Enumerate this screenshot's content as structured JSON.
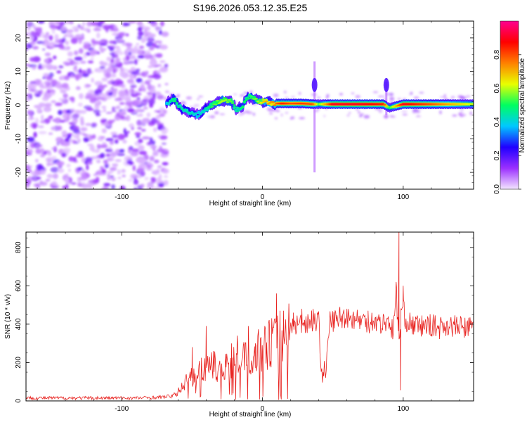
{
  "title": "S196.2026.053.12.35.E25",
  "chart_data": [
    {
      "type": "heatmap",
      "xlabel": "Height of straight line (km)",
      "ylabel": "Frequency (Hz)",
      "xlim": [
        -168,
        150
      ],
      "ylim": [
        -25,
        25
      ],
      "xticks": [
        -100,
        0,
        100
      ],
      "yticks": [
        -20,
        -10,
        0,
        10,
        20
      ],
      "colorbar": {
        "label": "Normalized spectral amplitude",
        "range": [
          0,
          1
        ],
        "ticks": [
          0.0,
          0.2,
          0.4,
          0.6,
          0.8
        ],
        "colors": [
          "#f4e6ff",
          "#9b30ff",
          "#2000ff",
          "#00c8ff",
          "#00ff60",
          "#e8ff00",
          "#ff8000",
          "#ff0000",
          "#ff0090"
        ]
      },
      "noise_region_x": [
        -168,
        -68
      ],
      "signal_path": {
        "x": [
          -68,
          -63,
          -58,
          -52,
          -46,
          -40,
          -34,
          -28,
          -22,
          -18,
          -14,
          -10,
          -6,
          -2,
          2,
          8,
          14,
          20,
          28,
          36,
          40,
          50,
          70,
          86,
          90,
          100,
          120,
          150
        ],
        "freq": [
          0.5,
          2,
          -1,
          -2,
          -3,
          -1,
          0.5,
          1.5,
          1,
          -1.5,
          0,
          2.5,
          2,
          1,
          1,
          0.5,
          0.5,
          0.5,
          0.5,
          0.3,
          0.3,
          0.3,
          0.3,
          0.3,
          -0.8,
          0.3,
          0.3,
          0.3
        ],
        "amplitude": [
          0.4,
          0.5,
          0.45,
          0.45,
          0.4,
          0.45,
          0.55,
          0.6,
          0.55,
          0.45,
          0.5,
          0.5,
          0.55,
          0.6,
          0.7,
          0.75,
          0.85,
          0.8,
          0.82,
          0.8,
          0.55,
          0.9,
          0.9,
          0.85,
          0.5,
          0.9,
          0.8,
          0.6
        ]
      },
      "vertical_features": [
        {
          "x": 37,
          "freq_range": [
            -20,
            13
          ]
        },
        {
          "x": 88,
          "freq_range": [
            -3,
            7
          ]
        }
      ]
    },
    {
      "type": "line",
      "xlabel": "Height of straight line (km)",
      "ylabel": "SNR (10 * v/v)",
      "xlim": [
        -168,
        150
      ],
      "ylim": [
        0,
        880
      ],
      "xticks": [
        -100,
        0,
        100
      ],
      "yticks": [
        0,
        200,
        400,
        600,
        800
      ],
      "color": "#e8211e",
      "x": [
        -168,
        -150,
        -130,
        -110,
        -90,
        -70,
        -62,
        -58,
        -55,
        -50,
        -45,
        -40,
        -35,
        -30,
        -25,
        -20,
        -15,
        -10,
        -5,
        0,
        5,
        10,
        15,
        20,
        25,
        30,
        35,
        40,
        42,
        45,
        48,
        52,
        55,
        60,
        65,
        70,
        75,
        80,
        85,
        90,
        93,
        95,
        97,
        99,
        102,
        105,
        110,
        115,
        120,
        125,
        130,
        135,
        140,
        145,
        150
      ],
      "y": [
        15,
        15,
        15,
        15,
        15,
        20,
        30,
        60,
        100,
        130,
        160,
        160,
        180,
        170,
        190,
        200,
        220,
        230,
        250,
        280,
        300,
        320,
        360,
        380,
        400,
        410,
        420,
        410,
        150,
        150,
        420,
        420,
        430,
        440,
        430,
        420,
        410,
        420,
        400,
        420,
        350,
        580,
        300,
        500,
        420,
        400,
        390,
        390,
        395,
        380,
        395,
        390,
        385,
        380,
        390
      ],
      "spikes": [
        {
          "x": -50,
          "y": 280
        },
        {
          "x": -40,
          "y": 390
        },
        {
          "x": -22,
          "y": 300
        },
        {
          "x": -18,
          "y": 340
        },
        {
          "x": -10,
          "y": 390
        },
        {
          "x": -5,
          "y": 300
        },
        {
          "x": 0,
          "y": 260
        },
        {
          "x": 5,
          "y": 390
        },
        {
          "x": 10,
          "y": 560
        },
        {
          "x": 15,
          "y": 470
        },
        {
          "x": 22,
          "y": 460
        },
        {
          "x": 28,
          "y": 480
        },
        {
          "x": 36,
          "y": 480
        },
        {
          "x": 55,
          "y": 490
        },
        {
          "x": 60,
          "y": 480
        },
        {
          "x": 75,
          "y": 470
        },
        {
          "x": 95,
          "y": 620
        },
        {
          "x": 97,
          "y": 880
        },
        {
          "x": 98,
          "y": 55
        },
        {
          "x": 100,
          "y": 600
        }
      ]
    }
  ]
}
